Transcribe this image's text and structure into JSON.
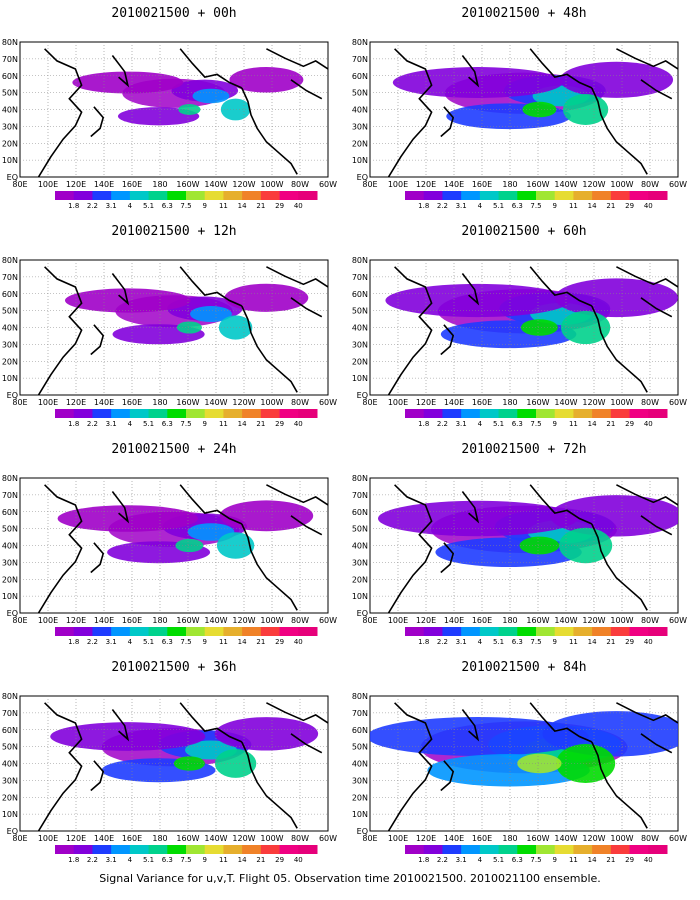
{
  "figure": {
    "caption": "Signal Variance for u,v,T. Flight 05. Observation time 2010021500. 2010021100 ensemble.",
    "lat_labels": [
      "80N",
      "70N",
      "60N",
      "50N",
      "40N",
      "30N",
      "20N",
      "10N",
      "EQ"
    ],
    "lon_labels": [
      "80E",
      "100E",
      "120E",
      "140E",
      "160E",
      "180",
      "160W",
      "140W",
      "120W",
      "100W",
      "80W",
      "60W"
    ],
    "colorbar": {
      "labels": [
        "1.8",
        "2.2",
        "3.1",
        "4",
        "5.1",
        "6.3",
        "7.5",
        "9",
        "11",
        "14",
        "21",
        "29",
        "40"
      ],
      "colors": [
        "#a000c8",
        "#8200dc",
        "#1e3cff",
        "#0096ff",
        "#00c8c8",
        "#00d28c",
        "#00dc00",
        "#a0e632",
        "#e6dc32",
        "#e6af2d",
        "#f08228",
        "#fa3c3c",
        "#f00082",
        "#e6007a"
      ]
    },
    "panels": [
      {
        "title": "2010021500 + 00h",
        "spread": 0.25
      },
      {
        "title": "2010021500 + 48h",
        "spread": 0.65
      },
      {
        "title": "2010021500 + 12h",
        "spread": 0.35
      },
      {
        "title": "2010021500 + 60h",
        "spread": 0.75
      },
      {
        "title": "2010021500 + 24h",
        "spread": 0.45
      },
      {
        "title": "2010021500 + 72h",
        "spread": 0.85
      },
      {
        "title": "2010021500 + 36h",
        "spread": 0.55
      },
      {
        "title": "2010021500 + 84h",
        "spread": 1.0
      }
    ]
  }
}
